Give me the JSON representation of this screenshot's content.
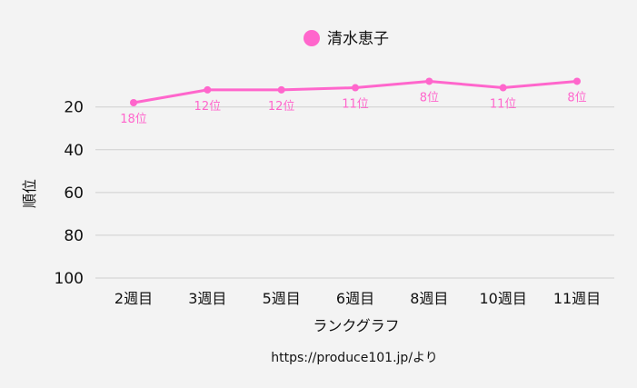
{
  "chart_data": {
    "type": "line",
    "categories": [
      "2週目",
      "3週目",
      "5週目",
      "6週目",
      "8週目",
      "10週目",
      "11週目"
    ],
    "series": [
      {
        "name": "清水恵子",
        "values": [
          18,
          12,
          12,
          11,
          8,
          11,
          8
        ],
        "labels": [
          "18位",
          "12位",
          "12位",
          "11位",
          "8位",
          "11位",
          "8位"
        ],
        "color": "#ff66cc"
      }
    ],
    "ylabel": "順位",
    "xlabel": "ランクグラフ",
    "yticks": [
      20,
      40,
      60,
      80,
      100
    ],
    "ylim": [
      100,
      1
    ],
    "y_reversed": true,
    "grid": true,
    "legend_position": "top-center",
    "source_note": "https://produce101.jp/より"
  }
}
